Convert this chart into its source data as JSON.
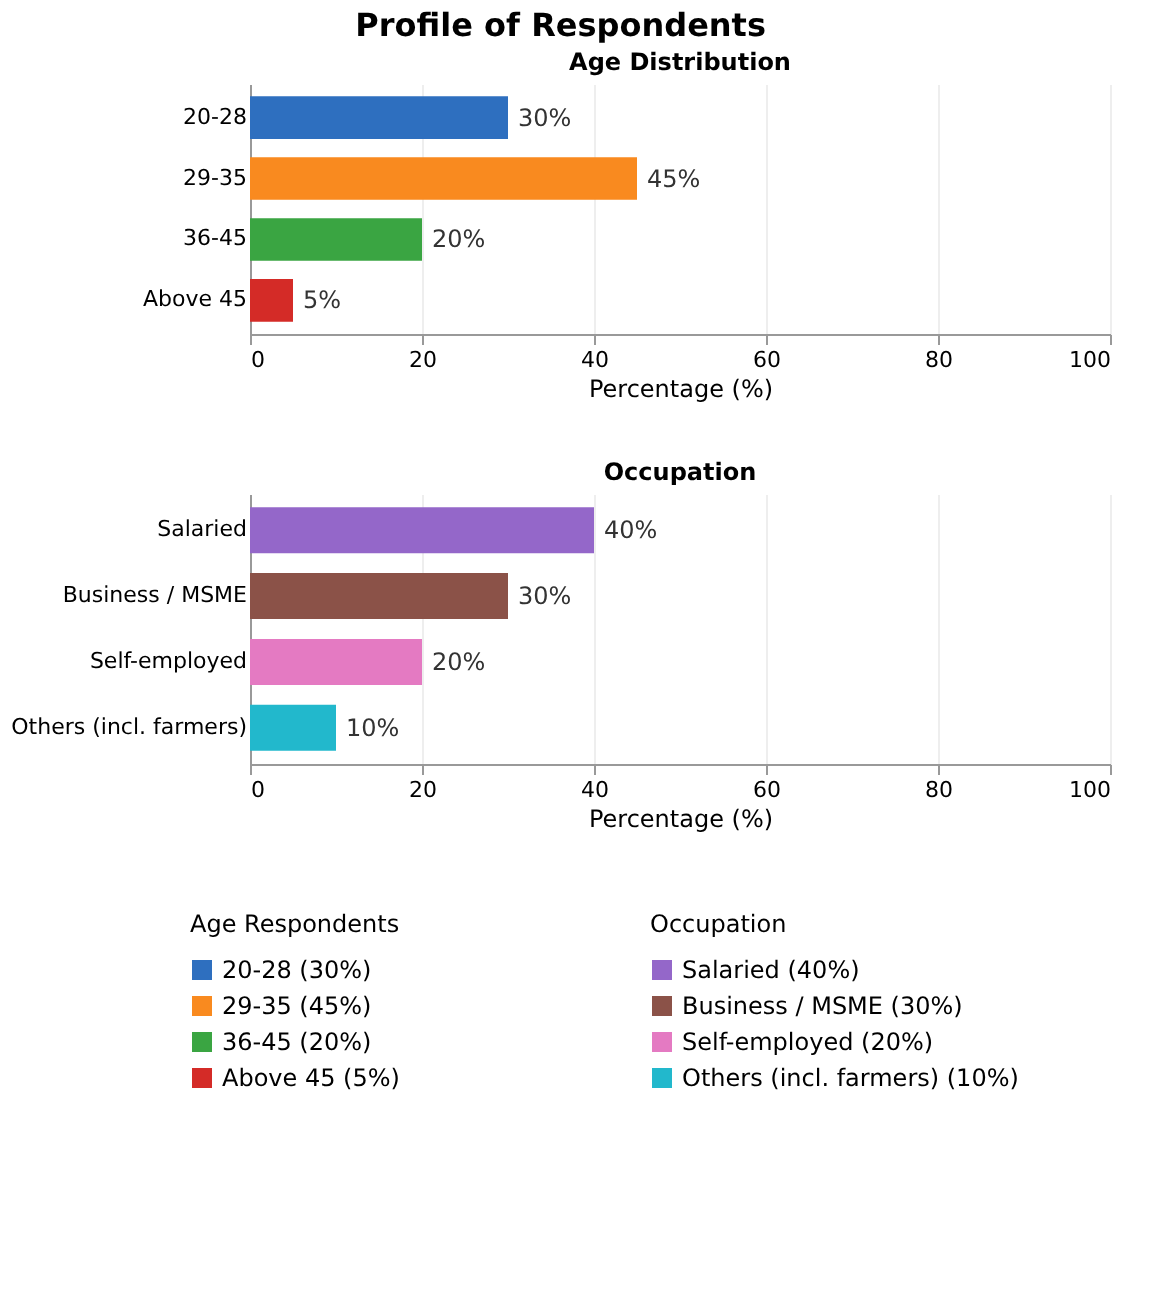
{
  "chart_data": [
    {
      "type": "bar",
      "orientation": "horizontal",
      "title": "Profile of Respondents",
      "subtitle": "Age Distribution",
      "xlabel": "Percentage (%)",
      "legend_title": "Age Respondents",
      "categories": [
        "20-28",
        "29-35",
        "36-45",
        "Above 45"
      ],
      "series": [
        {
          "name": "20-28 (30%)",
          "color": "#2e6fbf",
          "values": [
            30,
            null,
            null,
            null
          ],
          "value_labels": [
            "30%",
            null,
            null,
            null
          ]
        },
        {
          "name": "29-35 (45%)",
          "color": "#f98a1f",
          "values": [
            null,
            45,
            null,
            null
          ],
          "value_labels": [
            null,
            "45%",
            null,
            null
          ]
        },
        {
          "name": "36-45 (20%)",
          "color": "#3aa542",
          "values": [
            null,
            null,
            20,
            null
          ],
          "value_labels": [
            null,
            null,
            "20%",
            null
          ]
        },
        {
          "name": "Above 45 (5%)",
          "color": "#d42b27",
          "values": [
            null,
            null,
            null,
            5
          ],
          "value_labels": [
            null,
            null,
            null,
            "5%"
          ]
        }
      ],
      "xlim": [
        0,
        100
      ],
      "xticks": [
        0,
        20,
        40,
        60,
        80,
        100
      ],
      "grid": "x",
      "legend": "bottom"
    },
    {
      "type": "bar",
      "orientation": "horizontal",
      "title": "Occupation",
      "xlabel": "Percentage (%)",
      "legend_title": "Occupation",
      "categories": [
        "Salaried",
        "Business / MSME",
        "Self-employed",
        "Others (incl. farmers)"
      ],
      "series": [
        {
          "name": "Salaried (40%)",
          "color": "#9467c9",
          "values": [
            40,
            null,
            null,
            null
          ],
          "value_labels": [
            "40%",
            null,
            null,
            null
          ]
        },
        {
          "name": "Business / MSME (30%)",
          "color": "#8b5248",
          "values": [
            null,
            30,
            null,
            null
          ],
          "value_labels": [
            null,
            "30%",
            null,
            null
          ]
        },
        {
          "name": "Self-employed (20%)",
          "color": "#e47ac2",
          "values": [
            null,
            null,
            20,
            null
          ],
          "value_labels": [
            null,
            null,
            "20%",
            null
          ]
        },
        {
          "name": "Others (incl. farmers) (10%)",
          "color": "#22b8cc",
          "values": [
            null,
            null,
            null,
            10
          ],
          "value_labels": [
            null,
            null,
            null,
            "10%"
          ]
        }
      ],
      "xlim": [
        0,
        100
      ],
      "xticks": [
        0,
        20,
        40,
        60,
        80,
        100
      ],
      "grid": "x",
      "legend": "bottom"
    }
  ]
}
